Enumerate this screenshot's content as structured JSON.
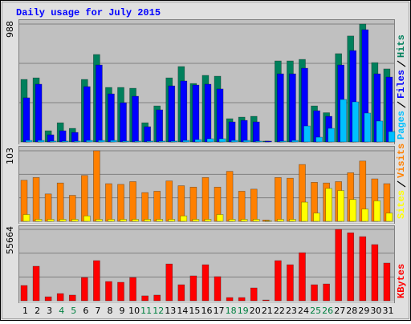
{
  "chart_data": {
    "type": "bar",
    "title": "Daily usage for July 2015",
    "categories": [
      "1",
      "2",
      "3",
      "4",
      "5",
      "6",
      "7",
      "8",
      "9",
      "10",
      "11",
      "12",
      "13",
      "14",
      "15",
      "16",
      "17",
      "18",
      "19",
      "20",
      "21",
      "22",
      "23",
      "24",
      "25",
      "26",
      "27",
      "28",
      "29",
      "30",
      "31"
    ],
    "category_colors": [
      "#000000",
      "#000000",
      "#000000",
      "#008040",
      "#008040",
      "#000000",
      "#000000",
      "#000000",
      "#000000",
      "#000000",
      "#008040",
      "#008040",
      "#000000",
      "#000000",
      "#000000",
      "#000000",
      "#000000",
      "#008040",
      "#008040",
      "#000000",
      "#000000",
      "#000000",
      "#000000",
      "#000000",
      "#008040",
      "#008040",
      "#000000",
      "#000000",
      "#000000",
      "#000000",
      "#000000"
    ],
    "panels": [
      {
        "ylim": [
          0,
          988
        ],
        "yticks": [
          988
        ],
        "grid_divisions": 3,
        "series": [
          {
            "name": "Hits",
            "color": "#00805c",
            "values": [
              524,
              537,
              94,
              161,
              114,
              524,
              733,
              457,
              457,
              450,
              161,
              302,
              537,
              632,
              490,
              558,
              551,
              195,
              208,
              215,
              7,
              679,
              679,
              692,
              302,
              245,
              740,
              888,
              988,
              665,
              612
            ]
          },
          {
            "name": "Files",
            "color": "#0000ff",
            "values": [
              370,
              484,
              60,
              94,
              80,
              464,
              645,
              403,
              329,
              383,
              128,
              269,
              470,
              511,
              477,
              484,
              444,
              168,
              181,
              168,
              7,
              571,
              571,
              618,
              262,
              215,
              645,
              766,
              941,
              571,
              544
            ]
          },
          {
            "name": "Pages",
            "color": "#00c0ff",
            "values": [
              13,
              13,
              7,
              7,
              7,
              13,
              13,
              13,
              7,
              7,
              7,
              7,
              7,
              13,
              20,
              27,
              27,
              13,
              13,
              7,
              0,
              7,
              13,
              134,
              40,
              114,
              356,
              336,
              242,
              175,
              87
            ]
          }
        ]
      },
      {
        "ylim": [
          0,
          103
        ],
        "yticks": [
          103
        ],
        "grid_divisions": 3,
        "series": [
          {
            "name": "Visits",
            "color": "#ff8000",
            "values": [
              60,
              64,
              40,
              56,
              38,
              67,
              103,
              55,
              54,
              58,
              42,
              44,
              59,
              52,
              50,
              64,
              50,
              73,
              44,
              47,
              2,
              64,
              63,
              83,
              57,
              56,
              58,
              71,
              88,
              62,
              55
            ]
          },
          {
            "name": "Sites",
            "color": "#ffff00",
            "values": [
              10,
              3,
              3,
              3,
              3,
              8,
              3,
              3,
              3,
              3,
              3,
              3,
              3,
              8,
              3,
              3,
              10,
              3,
              3,
              3,
              1,
              3,
              3,
              28,
              12,
              48,
              45,
              32,
              18,
              30,
              12
            ]
          }
        ]
      },
      {
        "ylim": [
          0,
          55664
        ],
        "yticks": [
          55664
        ],
        "grid_divisions": 3,
        "series": [
          {
            "name": "KBytes",
            "color": "#ff0000",
            "values": [
              11900,
              26900,
              3100,
              5600,
              4400,
              18100,
              31300,
              15000,
              14400,
              18100,
              3800,
              4400,
              28700,
              12500,
              19400,
              28100,
              18800,
              2500,
              2500,
              10000,
              600,
              31300,
              28100,
              37500,
              12500,
              13100,
              55664,
              53000,
              50000,
              43800,
              29400
            ]
          }
        ]
      }
    ]
  }
}
